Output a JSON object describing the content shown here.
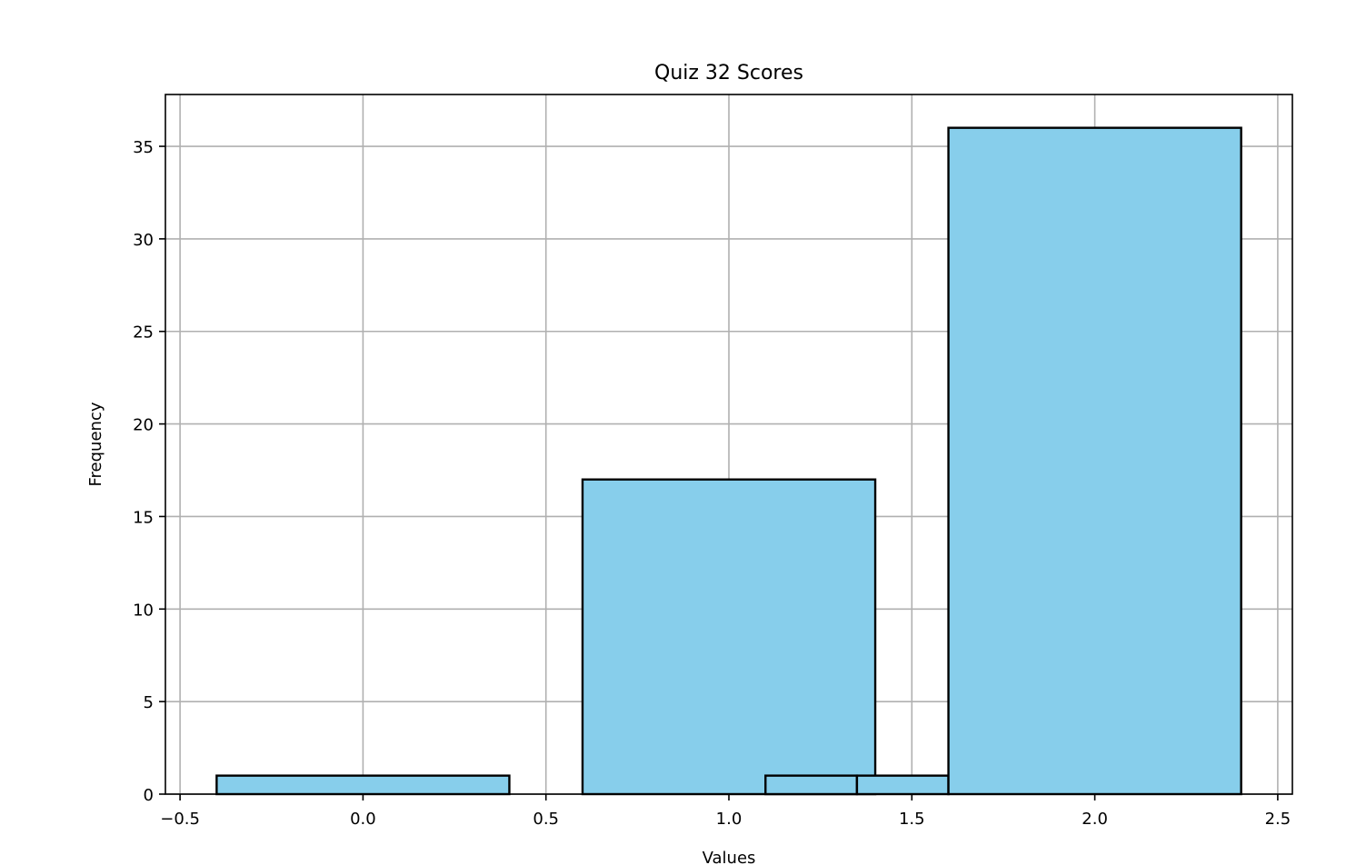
{
  "chart_data": {
    "type": "bar",
    "title": "Quiz 32 Scores",
    "xlabel": "Values",
    "ylabel": "Frequency",
    "xlim": [
      -0.54,
      2.54
    ],
    "ylim": [
      0,
      37.8
    ],
    "grid": true,
    "bar_color": "#87ceeb",
    "edge_color": "#000000",
    "grid_color": "#b0b0b0",
    "x_ticks": [
      {
        "value": -0.5,
        "label": "−0.5"
      },
      {
        "value": 0.0,
        "label": "0.0"
      },
      {
        "value": 0.5,
        "label": "0.5"
      },
      {
        "value": 1.0,
        "label": "1.0"
      },
      {
        "value": 1.5,
        "label": "1.5"
      },
      {
        "value": 2.0,
        "label": "2.0"
      },
      {
        "value": 2.5,
        "label": "2.5"
      }
    ],
    "y_ticks": [
      {
        "value": 0,
        "label": "0"
      },
      {
        "value": 5,
        "label": "5"
      },
      {
        "value": 10,
        "label": "10"
      },
      {
        "value": 15,
        "label": "15"
      },
      {
        "value": 20,
        "label": "20"
      },
      {
        "value": 25,
        "label": "25"
      },
      {
        "value": 30,
        "label": "30"
      },
      {
        "value": 35,
        "label": "35"
      }
    ],
    "bars": [
      {
        "x_start": -0.4,
        "x_end": 0.4,
        "value": 1
      },
      {
        "x_start": 0.6,
        "x_end": 1.4,
        "value": 17
      },
      {
        "x_start": 1.1,
        "x_end": 1.35,
        "value": 1
      },
      {
        "x_start": 1.35,
        "x_end": 1.6,
        "value": 1
      },
      {
        "x_start": 1.6,
        "x_end": 2.4,
        "value": 36
      }
    ]
  }
}
